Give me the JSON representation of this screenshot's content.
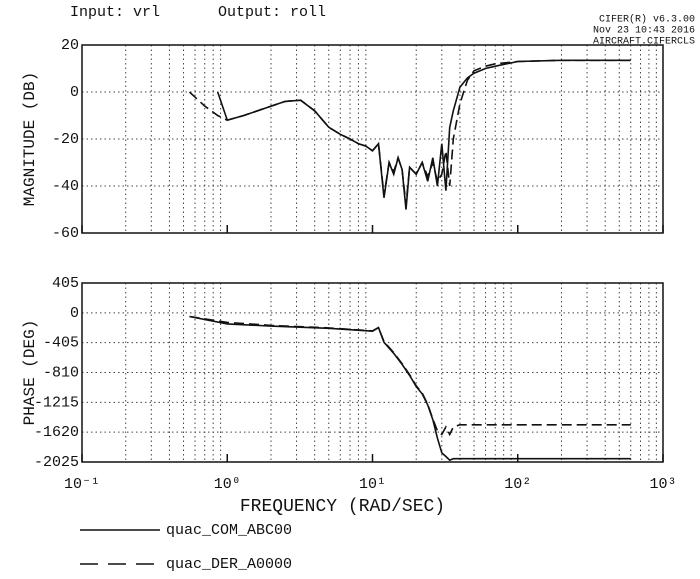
{
  "header": {
    "input": "Input: vrl",
    "output": "Output: roll",
    "software": "CIFER(R) v6.3.00",
    "date": "Nov 23 10:43 2016",
    "file": "AIRCRAFT.CIFERCLS"
  },
  "chart_data": [
    {
      "type": "line",
      "ylabel": "MAGNITUDE (DB)",
      "xscale": "log",
      "grid": true,
      "xlim": [
        0.1,
        1000
      ],
      "xticks": [
        0.1,
        1,
        10,
        100,
        1000
      ],
      "xminor": [
        2,
        3,
        4,
        5,
        6,
        7,
        8,
        9
      ],
      "ylim": [
        -60,
        20
      ],
      "yticks": [
        20,
        0,
        -20,
        -40,
        -60
      ],
      "x": [
        0.55,
        0.7,
        0.86,
        1.0,
        1.3,
        1.8,
        2.5,
        3.2,
        4,
        5,
        6,
        7,
        8,
        9,
        10,
        11,
        12,
        13,
        14,
        15,
        16,
        17,
        18,
        20,
        22,
        24,
        26,
        28,
        30,
        32,
        34,
        36,
        40,
        45,
        50,
        60,
        70,
        100,
        200,
        600
      ],
      "series": [
        {
          "name": "quac_COM_ABC00",
          "color": "#111111",
          "dash": false,
          "values": [
            null,
            null,
            0,
            -12,
            -10,
            -7,
            -4,
            -3.5,
            -8,
            -15,
            -18,
            -20,
            -22,
            -23,
            -25,
            -22,
            -45,
            -30,
            -35,
            -28,
            -33,
            -50,
            -32,
            -35,
            -30,
            -38,
            -28,
            -40,
            -22,
            -42,
            -15,
            -8,
            2,
            6,
            8,
            10,
            11,
            13,
            13.5,
            13.5
          ]
        },
        {
          "name": "quac_DER_A0000",
          "color": "#111111",
          "dash": true,
          "values": [
            0,
            -6,
            -10,
            -12,
            -10,
            -7,
            -4,
            -3.5,
            -8,
            -15,
            -18,
            -20,
            -22,
            -23,
            -25,
            -22,
            -44,
            -30,
            -34,
            -28,
            -33,
            -48,
            -32,
            -35,
            -30,
            -36,
            -30,
            -38,
            -35,
            -25,
            -40,
            -20,
            -5,
            5,
            9,
            11,
            12,
            13,
            13.5,
            13.5
          ]
        }
      ]
    },
    {
      "type": "line",
      "ylabel": "PHASE (DEG)",
      "xlabel": "FREQUENCY (RAD/SEC)",
      "xscale": "log",
      "grid": true,
      "xlim": [
        0.1,
        1000
      ],
      "xticks": [
        {
          "value": 0.1,
          "label": "10⁻¹"
        },
        {
          "value": 1,
          "label": "10⁰"
        },
        {
          "value": 10,
          "label": "10¹"
        },
        {
          "value": 100,
          "label": "10²"
        },
        {
          "value": 1000,
          "label": "10³"
        }
      ],
      "xminor": [
        2,
        3,
        4,
        5,
        6,
        7,
        8,
        9
      ],
      "ylim": [
        -2025,
        405
      ],
      "yticks": [
        405,
        0,
        -405,
        -810,
        -1215,
        -1620,
        -2025
      ],
      "x": [
        0.55,
        1,
        2,
        5,
        10,
        11,
        12,
        14,
        16,
        18,
        20,
        22,
        24,
        26,
        28,
        30,
        32,
        34,
        36,
        40,
        50,
        100,
        600
      ],
      "series": [
        {
          "color": "#111111",
          "dash": false,
          "values": [
            -50,
            -150,
            -180,
            -210,
            -250,
            -200,
            -400,
            -550,
            -700,
            -850,
            -1000,
            -1100,
            -1250,
            -1450,
            -1700,
            -1900,
            -1950,
            -2000,
            -1980,
            -1980,
            -1980,
            -1980,
            -1980
          ]
        },
        {
          "color": "#111111",
          "dash": true,
          "values": [
            -50,
            -130,
            -170,
            -205,
            -245,
            -200,
            -390,
            -540,
            -690,
            -840,
            -990,
            -1090,
            -1240,
            -1440,
            -1600,
            -1650,
            -1550,
            -1650,
            -1550,
            -1520,
            -1520,
            -1520,
            -1520
          ]
        }
      ]
    }
  ]
}
